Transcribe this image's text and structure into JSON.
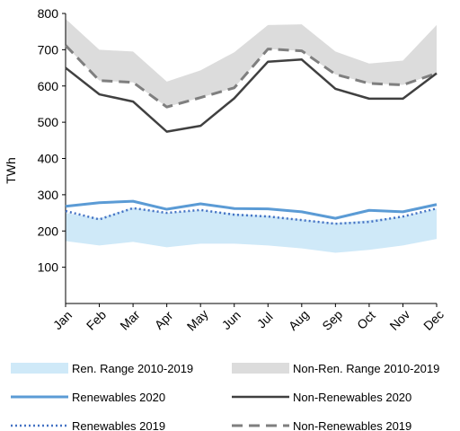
{
  "chart_data": {
    "type": "line",
    "title": "",
    "xlabel": "",
    "ylabel": "TWh",
    "ylim": [
      0,
      800
    ],
    "yticks": [
      100,
      200,
      300,
      400,
      500,
      600,
      700,
      800
    ],
    "grid": false,
    "legend_position": "bottom",
    "categories": [
      "Jan",
      "Feb",
      "Mar",
      "Apr",
      "May",
      "Jun",
      "Jul",
      "Aug",
      "Sep",
      "Oct",
      "Nov",
      "Dec"
    ],
    "bands": [
      {
        "name": "Ren. Range 2010-2019",
        "color": "#cfe9f8",
        "lower": [
          172,
          160,
          170,
          155,
          165,
          165,
          160,
          152,
          140,
          148,
          160,
          178
        ],
        "upper": [
          250,
          235,
          265,
          250,
          258,
          248,
          242,
          232,
          222,
          230,
          240,
          262
        ]
      },
      {
        "name": "Non-Ren. Range 2010-2019",
        "color": "#dcdcdc",
        "lower": [
          712,
          615,
          610,
          542,
          568,
          595,
          702,
          697,
          632,
          607,
          603,
          635
        ],
        "upper": [
          785,
          700,
          695,
          612,
          643,
          693,
          768,
          770,
          695,
          662,
          670,
          768
        ]
      }
    ],
    "series": [
      {
        "name": "Renewables 2020",
        "style": "solid",
        "color": "#5b9bd5",
        "width": 3,
        "values": [
          268,
          278,
          282,
          260,
          275,
          262,
          261,
          253,
          235,
          257,
          253,
          273
        ]
      },
      {
        "name": "Non-Renewables 2020",
        "style": "solid",
        "color": "#404040",
        "width": 2.5,
        "values": [
          650,
          577,
          557,
          474,
          490,
          566,
          667,
          673,
          592,
          565,
          565,
          635
        ]
      },
      {
        "name": "Renewables 2019",
        "style": "dotted",
        "color": "#4472c4",
        "width": 2.5,
        "values": [
          255,
          232,
          263,
          250,
          258,
          245,
          240,
          230,
          220,
          225,
          240,
          262
        ]
      },
      {
        "name": "Non-Renewables 2019",
        "style": "dashed",
        "color": "#7f7f7f",
        "width": 3,
        "values": [
          712,
          615,
          610,
          542,
          568,
          595,
          702,
          697,
          632,
          607,
          603,
          635
        ]
      }
    ]
  }
}
